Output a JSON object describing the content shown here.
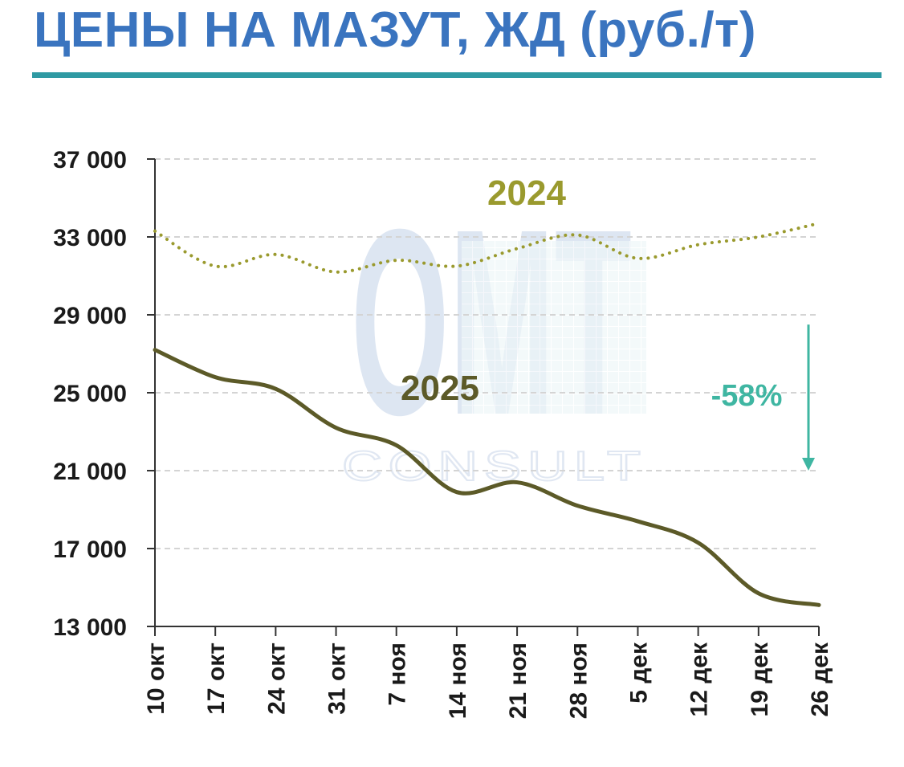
{
  "title": "ЦЕНЫ НА МАЗУТ, ЖД (руб./т)",
  "colors": {
    "title": "#3a74bf",
    "rule": "#2f9aa3",
    "series_2024": "#9a9a2e",
    "series_2025": "#5c5a28",
    "annotation": "#3fb6a2",
    "grid": "#d4d4d4"
  },
  "watermark": {
    "main": "ОМТ",
    "sub": "CONSULT"
  },
  "chart_data": {
    "type": "line",
    "x": [
      "10 окт",
      "17 окт",
      "24 окт",
      "31 окт",
      "7 ноя",
      "14 ноя",
      "21 ноя",
      "28 ноя",
      "5 дек",
      "12 дек",
      "19 дек",
      "26 дек"
    ],
    "y_ticks": [
      "13 000",
      "17 000",
      "21 000",
      "25 000",
      "29 000",
      "33 000",
      "37 000"
    ],
    "ylim": [
      13000,
      37000
    ],
    "grid": true,
    "series": [
      {
        "name": "2024",
        "style": "dotted",
        "values": [
          33300,
          31500,
          32100,
          31200,
          31800,
          31500,
          32400,
          33100,
          31900,
          32600,
          33000,
          33700
        ]
      },
      {
        "name": "2025",
        "style": "solid",
        "values": [
          27200,
          25800,
          25200,
          23200,
          22300,
          19900,
          20400,
          19200,
          18400,
          17300,
          14700,
          14100
        ]
      }
    ],
    "annotations": [
      {
        "text": "-58%",
        "type": "arrow-down",
        "from": 28500,
        "to": 21000
      }
    ]
  }
}
